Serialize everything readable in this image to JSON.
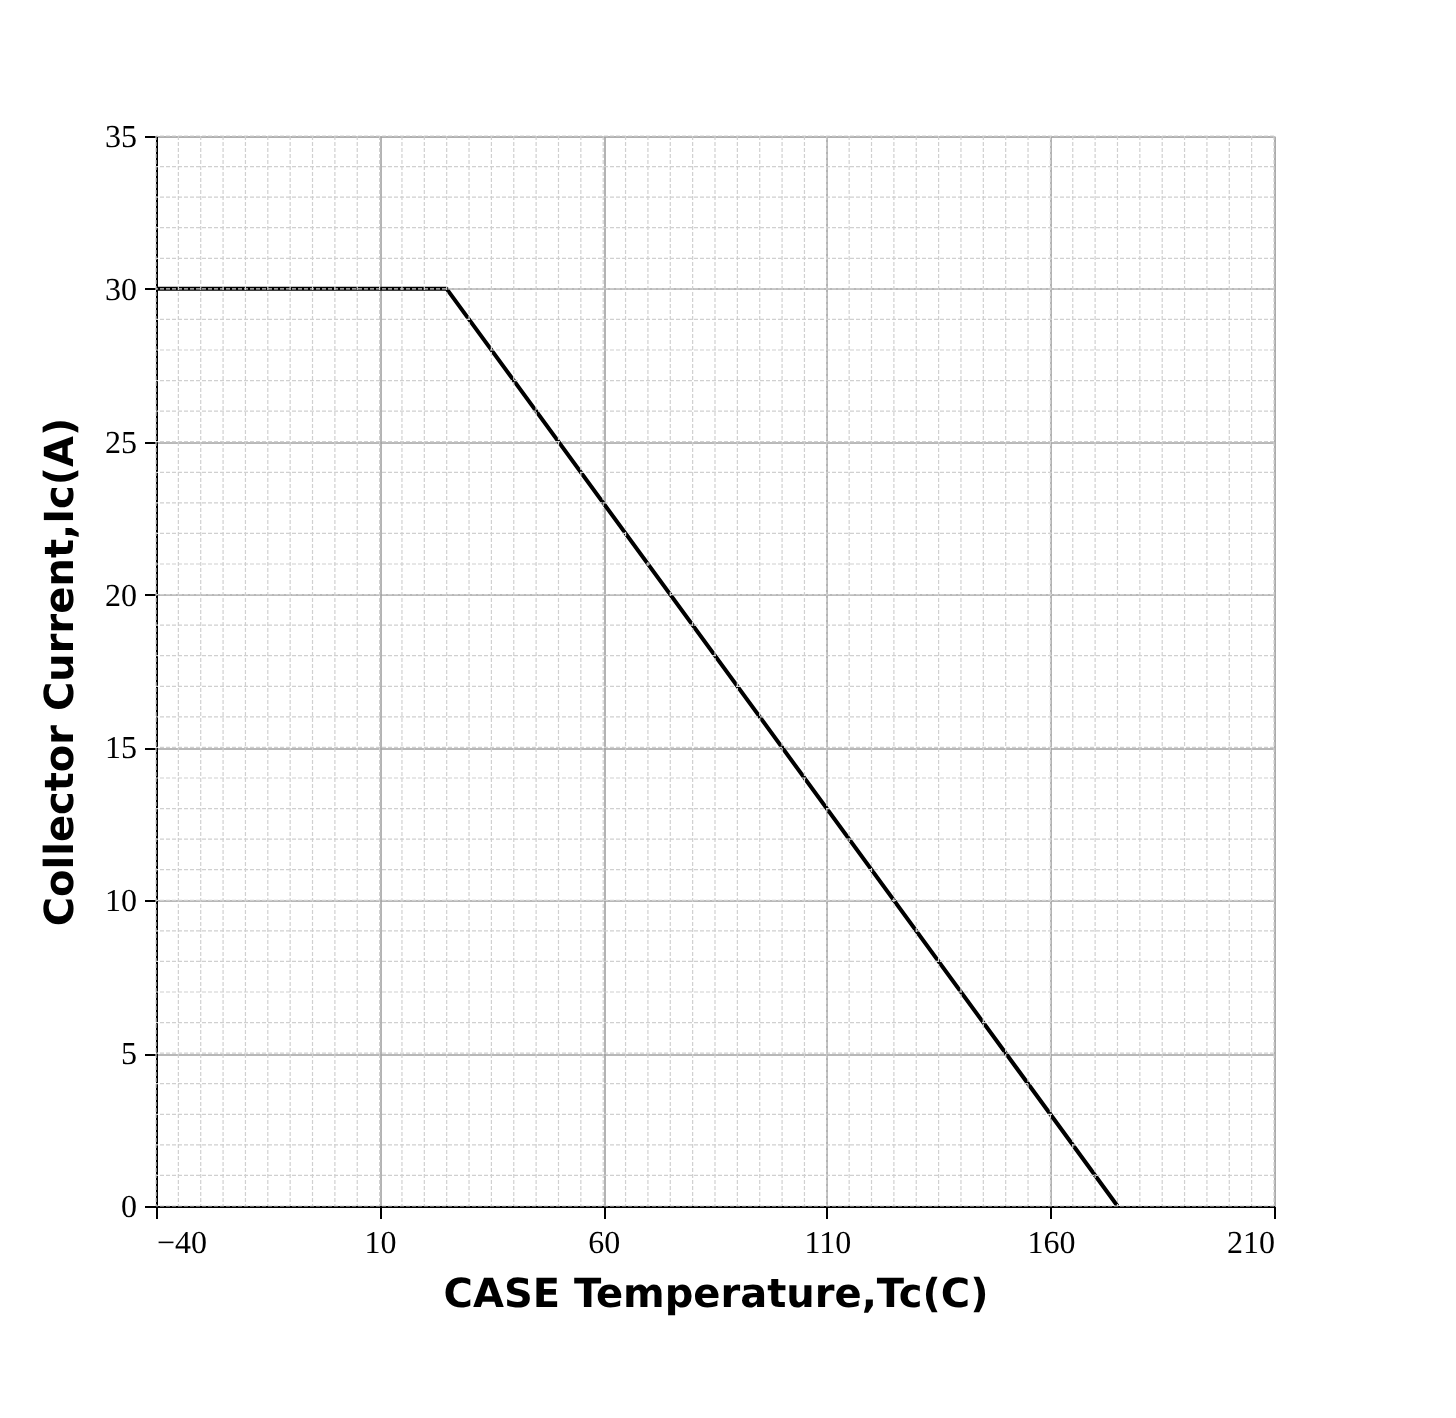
{
  "chart_data": {
    "type": "line",
    "xlabel": "CASE Temperature,Tc(C)",
    "ylabel": "Collector Current,Ic(A)",
    "x": [
      -40,
      25,
      175
    ],
    "series": [
      {
        "color": "#000000",
        "values": [
          30,
          30,
          0
        ]
      }
    ],
    "xlim": [
      -40,
      210
    ],
    "xticks": [
      -40,
      10,
      60,
      110,
      160,
      210
    ],
    "ylim": [
      0,
      35
    ],
    "yticks": [
      0,
      5,
      10,
      15,
      20,
      25,
      30,
      35
    ],
    "grid": true,
    "marker": "none",
    "line_style": "solid"
  }
}
